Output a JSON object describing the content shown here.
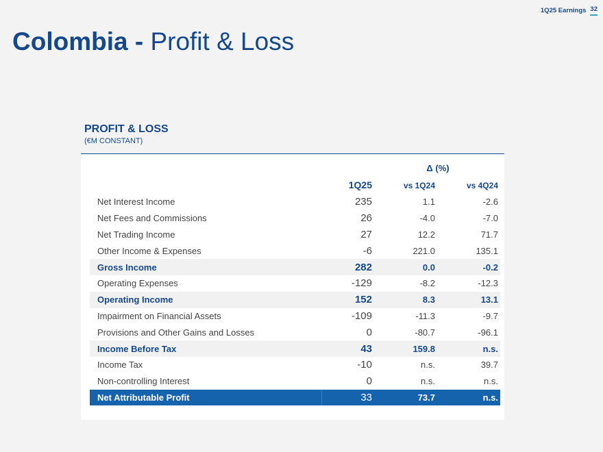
{
  "header": {
    "label": "1Q25 Earnings",
    "page": "32"
  },
  "title": {
    "bold": "Colombia -",
    "rest": "Profit & Loss"
  },
  "section": {
    "title": "PROFIT & LOSS",
    "subtitle": "(€M CONSTANT)"
  },
  "table": {
    "delta_header": "Δ (%)",
    "columns": {
      "current": "1Q25",
      "vs_prev_year": "vs 1Q24",
      "vs_prev_q": "vs 4Q24"
    },
    "rows": [
      {
        "label": "Net Interest Income",
        "value": "235",
        "vs1": "1.1",
        "vs4": "-2.6"
      },
      {
        "label": "Net Fees and Commissions",
        "value": "26",
        "vs1": "-4.0",
        "vs4": "-7.0"
      },
      {
        "label": "Net Trading Income",
        "value": "27",
        "vs1": "12.2",
        "vs4": "71.7"
      },
      {
        "label": "Other Income & Expenses",
        "value": "-6",
        "vs1": "221.0",
        "vs4": "135.1"
      },
      {
        "label": "Gross Income",
        "value": "282",
        "vs1": "0.0",
        "vs4": "-0.2"
      },
      {
        "label": "Operating Expenses",
        "value": "-129",
        "vs1": "-8.2",
        "vs4": "-12.3"
      },
      {
        "label": "Operating Income",
        "value": "152",
        "vs1": "8.3",
        "vs4": "13.1"
      },
      {
        "label": "Impairment on Financial Assets",
        "value": "-109",
        "vs1": "-11.3",
        "vs4": "-9.7"
      },
      {
        "label": "Provisions and Other Gains and Losses",
        "value": "0",
        "vs1": "-80.7",
        "vs4": "-96.1"
      },
      {
        "label": "Income Before Tax",
        "value": "43",
        "vs1": "159.8",
        "vs4": "n.s."
      },
      {
        "label": "Income Tax",
        "value": "-10",
        "vs1": "n.s.",
        "vs4": "39.7"
      },
      {
        "label": "Non-controlling Interest",
        "value": "0",
        "vs1": "n.s.",
        "vs4": "n.s."
      },
      {
        "label": "Net Attributable Profit",
        "value": "33",
        "vs1": "73.7",
        "vs4": "n.s."
      }
    ]
  },
  "colors": {
    "brand": "#14488e",
    "accent": "#2aa8c9",
    "total_bg": "#1562ad"
  }
}
